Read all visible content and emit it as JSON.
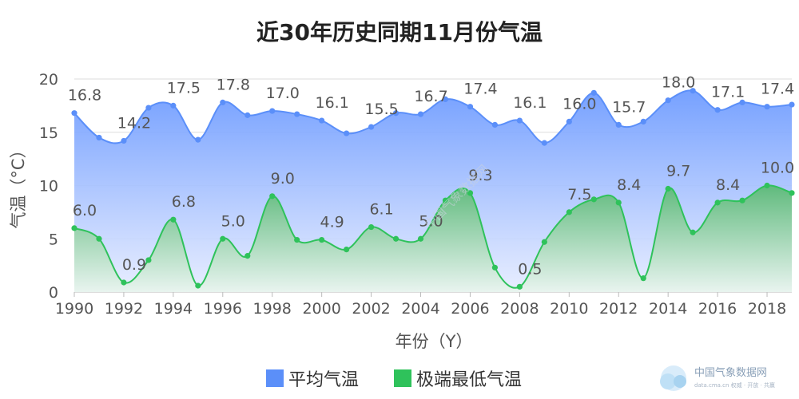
{
  "chart_data": {
    "type": "area",
    "title": "近30年历史同期11月份气温",
    "xlabel": "年份（Y）",
    "ylabel": "气温（°C）",
    "ylim": [
      0,
      20
    ],
    "yticks": [
      0,
      5,
      10,
      15,
      20
    ],
    "x": [
      1990,
      1991,
      1992,
      1993,
      1994,
      1995,
      1996,
      1997,
      1998,
      1999,
      2000,
      2001,
      2002,
      2003,
      2004,
      2005,
      2006,
      2007,
      2008,
      2009,
      2010,
      2011,
      2012,
      2013,
      2014,
      2015,
      2016,
      2017,
      2018,
      2019
    ],
    "xticks": [
      1990,
      1992,
      1994,
      1996,
      1998,
      2000,
      2002,
      2004,
      2006,
      2008,
      2010,
      2012,
      2014,
      2016,
      2018
    ],
    "grid": true,
    "legend_position": "bottom",
    "series": [
      {
        "name": "平均气温",
        "color": "#5b8ff9",
        "values": [
          16.8,
          14.5,
          14.2,
          17.3,
          17.5,
          14.3,
          17.8,
          16.6,
          17.0,
          16.7,
          16.1,
          14.9,
          15.5,
          16.8,
          16.7,
          18.1,
          17.4,
          15.7,
          16.1,
          14.0,
          16.0,
          18.7,
          15.7,
          16.0,
          18.0,
          18.9,
          17.1,
          17.8,
          17.4,
          17.6
        ],
        "labels": [
          {
            "year": 1990,
            "text": "16.8"
          },
          {
            "year": 1992,
            "text": "14.2"
          },
          {
            "year": 1994,
            "text": "17.5"
          },
          {
            "year": 1996,
            "text": "17.8"
          },
          {
            "year": 1998,
            "text": "17.0"
          },
          {
            "year": 2000,
            "text": "16.1"
          },
          {
            "year": 2002,
            "text": "15.5"
          },
          {
            "year": 2004,
            "text": "16.7"
          },
          {
            "year": 2006,
            "text": "17.4"
          },
          {
            "year": 2008,
            "text": "16.1"
          },
          {
            "year": 2010,
            "text": "16.0"
          },
          {
            "year": 2012,
            "text": "15.7"
          },
          {
            "year": 2014,
            "text": "18.0"
          },
          {
            "year": 2016,
            "text": "17.1"
          },
          {
            "year": 2018,
            "text": "17.4"
          }
        ]
      },
      {
        "name": "极端最低气温",
        "color": "#2fc25b",
        "values": [
          6.0,
          5.0,
          0.9,
          3.0,
          6.8,
          0.6,
          5.0,
          3.4,
          9.0,
          4.9,
          4.9,
          4.0,
          6.1,
          5.0,
          5.0,
          8.6,
          9.3,
          2.3,
          0.5,
          4.7,
          7.5,
          8.7,
          8.4,
          1.3,
          9.7,
          5.6,
          8.4,
          8.6,
          10.0,
          9.3
        ],
        "labels": [
          {
            "year": 1990,
            "text": "6.0"
          },
          {
            "year": 1992,
            "text": "0.9"
          },
          {
            "year": 1994,
            "text": "6.8"
          },
          {
            "year": 1996,
            "text": "5.0"
          },
          {
            "year": 1998,
            "text": "9.0"
          },
          {
            "year": 2000,
            "text": "4.9"
          },
          {
            "year": 2002,
            "text": "6.1"
          },
          {
            "year": 2004,
            "text": "5.0"
          },
          {
            "year": 2006,
            "text": "9.3"
          },
          {
            "year": 2008,
            "text": "0.5"
          },
          {
            "year": 2010,
            "text": "7.5"
          },
          {
            "year": 2012,
            "text": "8.4"
          },
          {
            "year": 2014,
            "text": "9.7"
          },
          {
            "year": 2016,
            "text": "8.4"
          },
          {
            "year": 2018,
            "text": "10.0"
          }
        ]
      }
    ]
  },
  "watermark": {
    "name": "中国气象数据网",
    "sub": "data.cma.cn 权威 · 开放 · 共赢",
    "overlay": "中国气象数据网"
  }
}
